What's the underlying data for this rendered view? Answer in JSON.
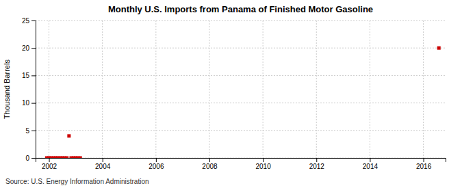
{
  "chart_data": {
    "type": "scatter",
    "title": "Monthly U.S. Imports from Panama of Finished Motor Gasoline",
    "ylabel": "Thousand Barrels",
    "source": "Source: U.S. Energy Information Administration",
    "x": [
      2001.92,
      2002.0,
      2002.08,
      2002.17,
      2002.25,
      2002.33,
      2002.42,
      2002.5,
      2002.58,
      2002.67,
      2002.75,
      2002.83,
      2002.92,
      2003.0,
      2003.08,
      2003.17,
      2016.58
    ],
    "values": [
      0,
      0,
      0,
      0,
      0,
      0,
      0,
      0,
      0,
      0,
      4,
      0,
      0,
      0,
      0,
      0,
      20
    ],
    "color": "#cc0000",
    "marker": "square",
    "xlim": [
      2001.5,
      2016.83
    ],
    "xticks": [
      2002,
      2004,
      2006,
      2008,
      2010,
      2012,
      2014,
      2016
    ],
    "ylim": [
      0,
      25
    ],
    "yticks": [
      0,
      5,
      10,
      15,
      20,
      25
    ],
    "grid": true
  }
}
